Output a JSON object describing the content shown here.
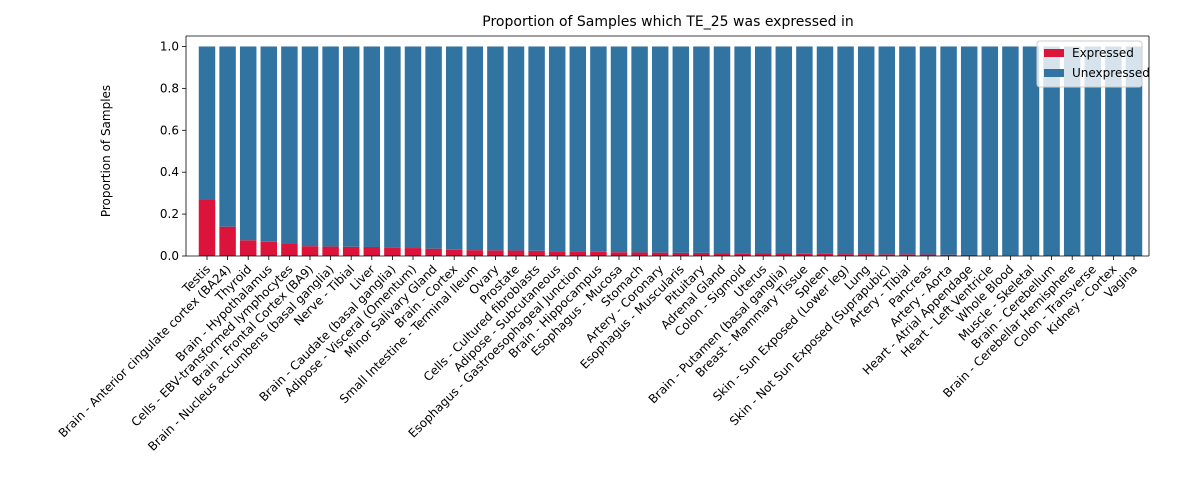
{
  "chart_data": {
    "type": "bar",
    "stacked": true,
    "title": "Proportion of Samples which TE_25 was expressed in",
    "xlabel": "",
    "ylabel": "Proportion of Samples",
    "ylim": [
      0,
      1.05
    ],
    "yticks": [
      "0.0",
      "0.2",
      "0.4",
      "0.6",
      "0.8",
      "1.0"
    ],
    "ytick_values": [
      0,
      0.2,
      0.4,
      0.6,
      0.8,
      1.0
    ],
    "legend_position": "top-right",
    "grid": false,
    "categories": [
      "Testis",
      "Brain - Anterior cingulate cortex (BA24)",
      "Thyroid",
      "Brain - Hypothalamus",
      "Cells - EBV-transformed lymphocytes",
      "Brain - Frontal Cortex (BA9)",
      "Brain - Nucleus accumbens (basal ganglia)",
      "Nerve - Tibial",
      "Liver",
      "Brain - Caudate (basal ganglia)",
      "Adipose - Visceral (Omentum)",
      "Minor Salivary Gland",
      "Brain - Cortex",
      "Small Intestine - Terminal Ileum",
      "Ovary",
      "Prostate",
      "Cells - Cultured fibroblasts",
      "Adipose - Subcutaneous",
      "Esophagus - Gastroesophageal Junction",
      "Brain - Hippocampus",
      "Esophagus - Mucosa",
      "Stomach",
      "Artery - Coronary",
      "Esophagus - Muscularis",
      "Pituitary",
      "Adrenal Gland",
      "Colon - Sigmoid",
      "Uterus",
      "Brain - Putamen (basal ganglia)",
      "Breast - Mammary Tissue",
      "Spleen",
      "Skin - Sun Exposed (Lower leg)",
      "Lung",
      "Skin - Not Sun Exposed (Suprapubic)",
      "Artery - Tibial",
      "Pancreas",
      "Artery - Aorta",
      "Heart - Atrial Appendage",
      "Heart - Left Ventricle",
      "Whole Blood",
      "Muscle - Skeletal",
      "Brain - Cerebellum",
      "Brain - Cerebellar Hemisphere",
      "Colon - Transverse",
      "Kidney - Cortex",
      "Vagina"
    ],
    "series": [
      {
        "name": "Expressed",
        "color": "#dc143c",
        "values": [
          0.27,
          0.14,
          0.075,
          0.068,
          0.06,
          0.047,
          0.045,
          0.044,
          0.043,
          0.04,
          0.038,
          0.035,
          0.03,
          0.028,
          0.027,
          0.026,
          0.025,
          0.022,
          0.021,
          0.02,
          0.018,
          0.017,
          0.016,
          0.015,
          0.015,
          0.014,
          0.013,
          0.012,
          0.012,
          0.011,
          0.01,
          0.009,
          0.009,
          0.008,
          0.008,
          0.007,
          0.006,
          0.005,
          0.004,
          0.003,
          0.002,
          0.0,
          0.0,
          0.0,
          0.0,
          0.0
        ]
      },
      {
        "name": "Unexpressed",
        "color": "#3274a1",
        "values": [
          0.73,
          0.86,
          0.925,
          0.932,
          0.94,
          0.953,
          0.955,
          0.956,
          0.957,
          0.96,
          0.962,
          0.965,
          0.97,
          0.972,
          0.973,
          0.974,
          0.975,
          0.978,
          0.979,
          0.98,
          0.982,
          0.983,
          0.984,
          0.985,
          0.985,
          0.986,
          0.987,
          0.988,
          0.988,
          0.989,
          0.99,
          0.991,
          0.991,
          0.992,
          0.992,
          0.993,
          0.994,
          0.995,
          0.996,
          0.997,
          0.998,
          1.0,
          1.0,
          1.0,
          1.0,
          1.0
        ]
      }
    ]
  }
}
